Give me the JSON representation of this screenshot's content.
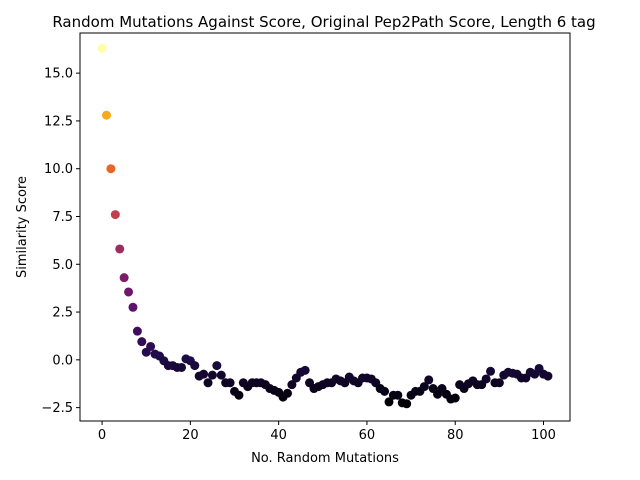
{
  "chart_data": {
    "type": "scatter",
    "title": "Random Mutations Against Score, Original Pep2Path Score, Length 6 tag",
    "xlabel": "No. Random Mutations",
    "ylabel": "Similarity Score",
    "xlim": [
      -5,
      106
    ],
    "ylim": [
      -3.2,
      17.1
    ],
    "xticks": [
      0,
      20,
      40,
      60,
      80,
      100
    ],
    "yticks": [
      -2.5,
      0.0,
      2.5,
      5.0,
      7.5,
      10.0,
      12.5,
      15.0
    ],
    "ytick_labels": [
      "−2.5",
      "0.0",
      "2.5",
      "5.0",
      "7.5",
      "10.0",
      "12.5",
      "15.0"
    ],
    "grid": false,
    "colormap": "inferno",
    "color_note": "point color encodes the similarity score",
    "x": [
      0,
      1,
      2,
      3,
      4,
      5,
      6,
      7,
      8,
      9,
      10,
      11,
      12,
      13,
      14,
      15,
      16,
      17,
      18,
      19,
      20,
      21,
      22,
      23,
      24,
      25,
      26,
      27,
      28,
      29,
      30,
      31,
      32,
      33,
      34,
      35,
      36,
      37,
      38,
      39,
      40,
      41,
      42,
      43,
      44,
      45,
      46,
      47,
      48,
      49,
      50,
      51,
      52,
      53,
      54,
      55,
      56,
      57,
      58,
      59,
      60,
      61,
      62,
      63,
      64,
      65,
      66,
      67,
      68,
      69,
      70,
      71,
      72,
      73,
      74,
      75,
      76,
      77,
      78,
      79,
      80,
      81,
      82,
      83,
      84,
      85,
      86,
      87,
      88,
      89,
      90,
      91,
      92,
      93,
      94,
      95,
      96,
      97,
      98,
      99,
      100,
      101
    ],
    "y": [
      16.3,
      12.8,
      10.0,
      7.6,
      5.8,
      4.3,
      3.55,
      2.75,
      1.5,
      0.95,
      0.4,
      0.7,
      0.3,
      0.2,
      -0.05,
      -0.3,
      -0.3,
      -0.4,
      -0.4,
      0.05,
      -0.05,
      -0.3,
      -0.85,
      -0.75,
      -1.2,
      -0.8,
      -0.3,
      -0.8,
      -1.2,
      -1.2,
      -1.65,
      -1.85,
      -1.2,
      -1.4,
      -1.2,
      -1.2,
      -1.2,
      -1.3,
      -1.5,
      -1.6,
      -1.7,
      -1.95,
      -1.75,
      -1.3,
      -0.95,
      -0.65,
      -0.55,
      -1.2,
      -1.5,
      -1.4,
      -1.3,
      -1.2,
      -1.2,
      -1.0,
      -1.1,
      -1.2,
      -0.9,
      -1.1,
      -1.2,
      -0.95,
      -0.95,
      -1.0,
      -1.2,
      -1.5,
      -1.65,
      -2.2,
      -1.85,
      -1.85,
      -2.25,
      -2.3,
      -1.85,
      -1.65,
      -1.65,
      -1.4,
      -1.05,
      -1.5,
      -1.8,
      -1.5,
      -1.8,
      -2.05,
      -2.0,
      -1.3,
      -1.5,
      -1.25,
      -1.1,
      -1.3,
      -1.3,
      -1.0,
      -0.6,
      -1.2,
      -1.2,
      -0.8,
      -0.65,
      -0.7,
      -0.75,
      -0.95,
      -0.95,
      -0.65,
      -0.75,
      -0.45,
      -0.75,
      -0.85
    ]
  }
}
